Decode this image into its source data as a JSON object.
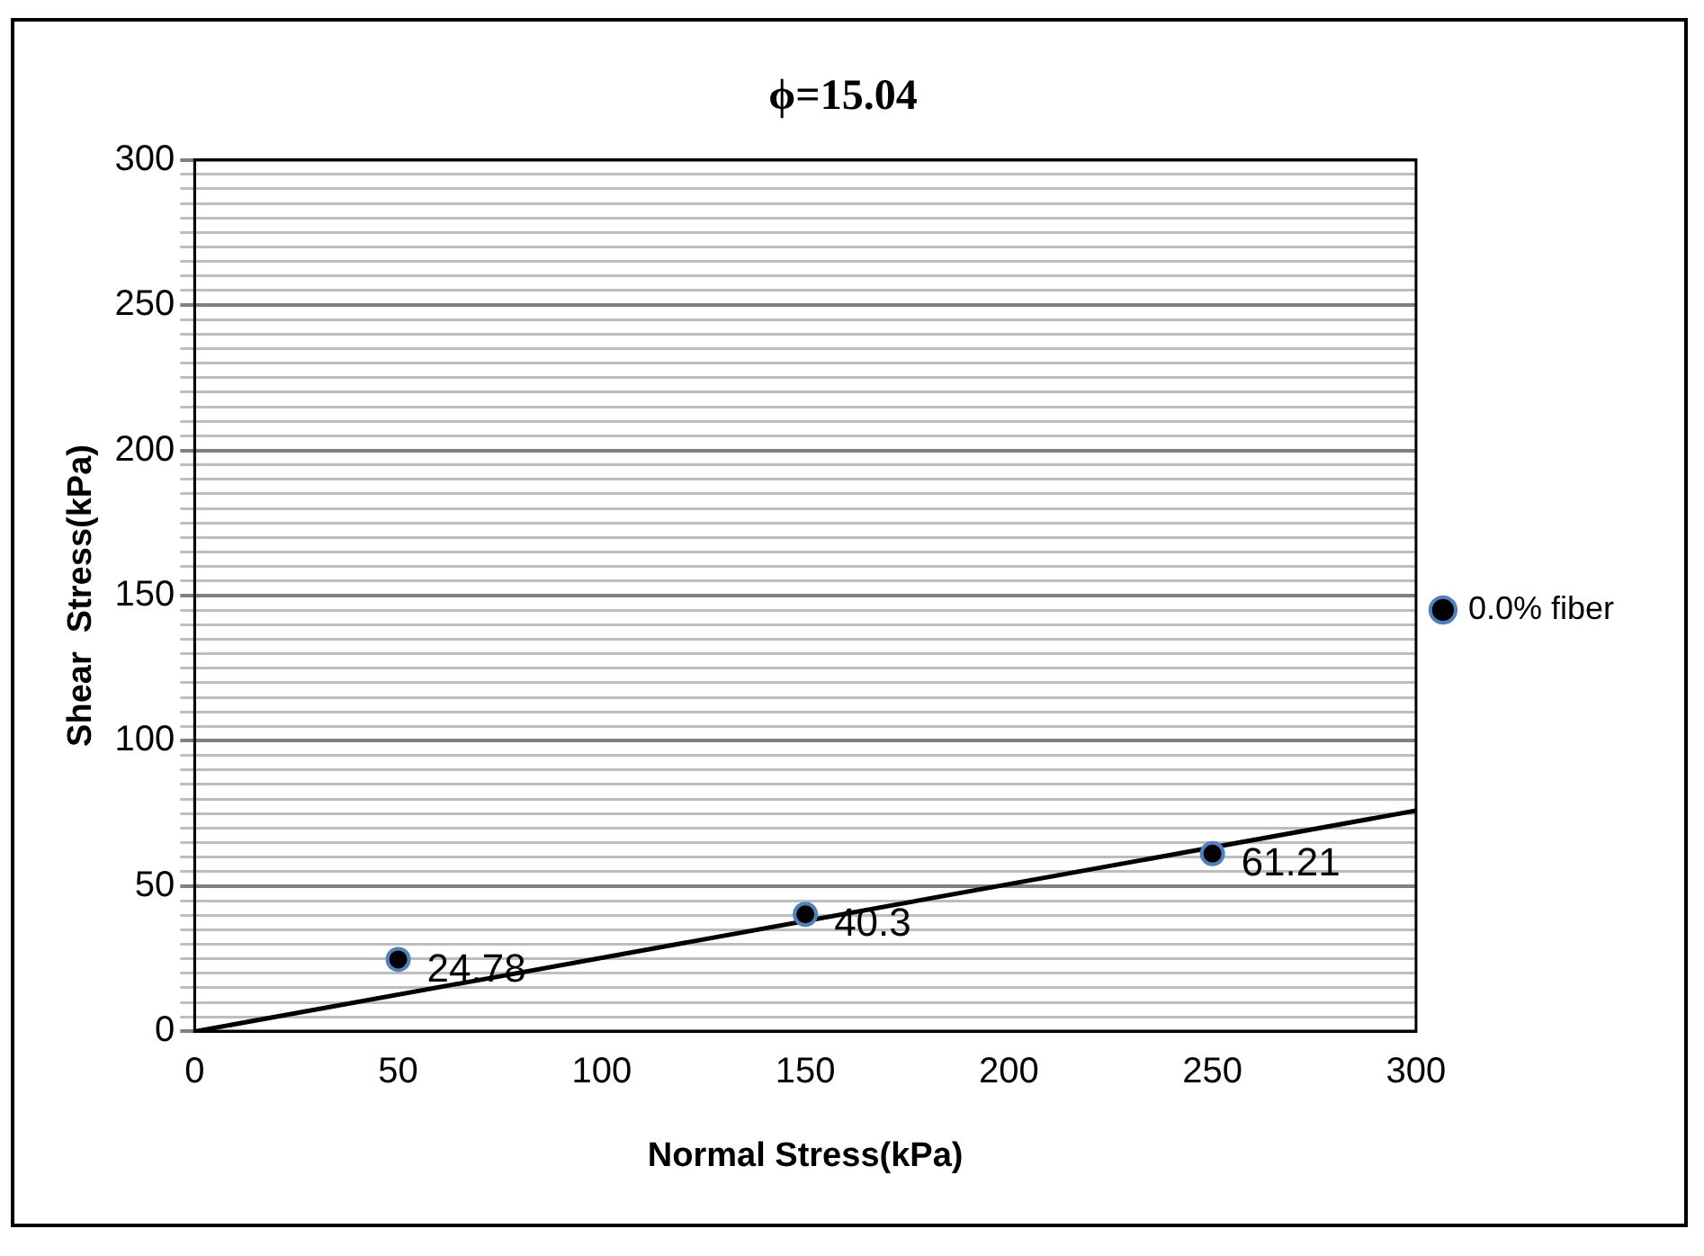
{
  "chart_data": {
    "type": "scatter",
    "title": "ϕ=15.04",
    "xlabel": "Normal Stress(kPa)",
    "ylabel": "Shear  Stress(kPa)",
    "xlim": [
      0,
      300
    ],
    "xticks": [
      0,
      50,
      100,
      150,
      200,
      250,
      300
    ],
    "ylim": [
      0,
      300
    ],
    "yticks": [
      0,
      {
        "value": 5,
        "label": null
      },
      {
        "value": 10,
        "label": null
      },
      {
        "value": 15,
        "label": null
      },
      {
        "value": 20,
        "label": null
      },
      {
        "value": 25,
        "label": null
      },
      {
        "value": 30,
        "label": null
      },
      {
        "value": 35,
        "label": null
      },
      {
        "value": 40,
        "label": null
      },
      {
        "value": 45,
        "label": null
      },
      50,
      {
        "value": 55,
        "label": null
      },
      {
        "value": 60,
        "label": null
      },
      {
        "value": 65,
        "label": null
      },
      {
        "value": 70,
        "label": null
      },
      {
        "value": 75,
        "label": null
      },
      {
        "value": 80,
        "label": null
      },
      {
        "value": 85,
        "label": null
      },
      {
        "value": 90,
        "label": null
      },
      {
        "value": 95,
        "label": null
      },
      100,
      {
        "value": 105,
        "label": null
      },
      {
        "value": 110,
        "label": null
      },
      {
        "value": 115,
        "label": null
      },
      {
        "value": 120,
        "label": null
      },
      {
        "value": 125,
        "label": null
      },
      {
        "value": 130,
        "label": null
      },
      {
        "value": 135,
        "label": null
      },
      {
        "value": 140,
        "label": null
      },
      {
        "value": 145,
        "label": null
      },
      150,
      {
        "value": 155,
        "label": null
      },
      {
        "value": 160,
        "label": null
      },
      {
        "value": 165,
        "label": null
      },
      {
        "value": 170,
        "label": null
      },
      {
        "value": 175,
        "label": null
      },
      {
        "value": 180,
        "label": null
      },
      {
        "value": 185,
        "label": null
      },
      {
        "value": 190,
        "label": null
      },
      {
        "value": 195,
        "label": null
      },
      200,
      {
        "value": 205,
        "label": null
      },
      {
        "value": 210,
        "label": null
      },
      {
        "value": 215,
        "label": null
      },
      {
        "value": 220,
        "label": null
      },
      {
        "value": 225,
        "label": null
      },
      {
        "value": 230,
        "label": null
      },
      {
        "value": 235,
        "label": null
      },
      {
        "value": 240,
        "label": null
      },
      {
        "value": 245,
        "label": null
      },
      250,
      {
        "value": 255,
        "label": null
      },
      {
        "value": 260,
        "label": null
      },
      {
        "value": 265,
        "label": null
      },
      {
        "value": 270,
        "label": null
      },
      {
        "value": 275,
        "label": null
      },
      {
        "value": 280,
        "label": null
      },
      {
        "value": 285,
        "label": null
      },
      {
        "value": 290,
        "label": null
      },
      {
        "value": 295,
        "label": null
      },
      300
    ],
    "grid": "y",
    "legend": "right",
    "series": [
      {
        "name": "0.0% fiber",
        "marker": "circle",
        "color": "#000000",
        "x": [
          50,
          150,
          250
        ],
        "values": [
          24.78,
          40.3,
          61.21
        ],
        "value_labels": [
          "24.78",
          "40.3",
          "61.21"
        ]
      },
      {
        "type": "line",
        "marker": "none",
        "color": "#000000",
        "x": [
          0,
          300
        ],
        "values": [
          0,
          76
        ]
      }
    ]
  }
}
